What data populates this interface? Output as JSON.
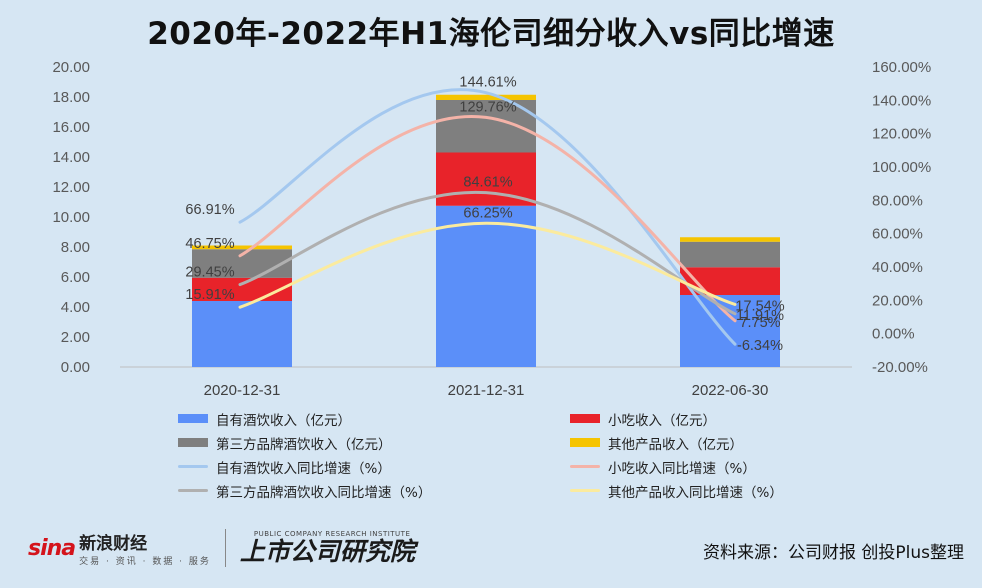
{
  "chart_data": {
    "type": "bar",
    "title": "2020年-2022年H1海伦司细分收入vs同比增速",
    "categories": [
      "2020-12-31",
      "2021-12-31",
      "2022-06-30"
    ],
    "ylim": [
      0,
      20
    ],
    "y2lim": [
      -20,
      160
    ],
    "yticks": [
      "0.00",
      "2.00",
      "4.00",
      "6.00",
      "8.00",
      "10.00",
      "12.00",
      "14.00",
      "16.00",
      "18.00",
      "20.00"
    ],
    "y2ticks": [
      "-20.00%",
      "0.00%",
      "20.00%",
      "40.00%",
      "60.00%",
      "80.00%",
      "100.00%",
      "120.00%",
      "140.00%",
      "160.00%"
    ],
    "bar_series": [
      {
        "name": "自有酒饮收入（亿元）",
        "color": "#5b8ff9",
        "values": [
          4.4,
          10.75,
          4.8
        ]
      },
      {
        "name": "小吃收入（亿元）",
        "color": "#e8232a",
        "values": [
          1.55,
          3.55,
          1.85
        ]
      },
      {
        "name": "第三方品牌酒饮收入（亿元）",
        "color": "#7f7f7f",
        "values": [
          1.9,
          3.5,
          1.7
        ]
      },
      {
        "name": "其他产品收入（亿元）",
        "color": "#f5c400",
        "values": [
          0.25,
          0.35,
          0.3
        ]
      }
    ],
    "line_series": [
      {
        "name": "自有酒饮收入同比增速（%）",
        "color": "#a4c8ef",
        "values": [
          66.91,
          144.61,
          -6.34
        ],
        "labels": [
          "66.91%",
          "144.61%",
          "-6.34%"
        ]
      },
      {
        "name": "小吃收入同比增速（%）",
        "color": "#f4b3a8",
        "values": [
          46.75,
          129.76,
          7.75
        ],
        "labels": [
          "46.75%",
          "129.76%",
          "7.75%"
        ]
      },
      {
        "name": "第三方品牌酒饮收入同比增速（%）",
        "color": "#b0b0b0",
        "values": [
          29.45,
          84.61,
          11.91
        ],
        "labels": [
          "29.45%",
          "84.61%",
          "11.91%"
        ]
      },
      {
        "name": "其他产品收入同比增速（%）",
        "color": "#fbeb9e",
        "values": [
          15.91,
          66.25,
          17.54
        ],
        "labels": [
          "15.91%",
          "66.25%",
          "17.54%"
        ]
      }
    ],
    "grid": false,
    "legend_position": "bottom"
  },
  "footer": {
    "sina_logo": "sina",
    "sina_name": "新浪财经",
    "sina_sub": "交易 · 资讯 · 数据 · 服务",
    "lead_sub": "PUBLIC COMPANY RESEARCH INSTITUTE",
    "lead_name": "上市公司研究院",
    "source": "资料来源：公司财报 创投Plus整理"
  }
}
